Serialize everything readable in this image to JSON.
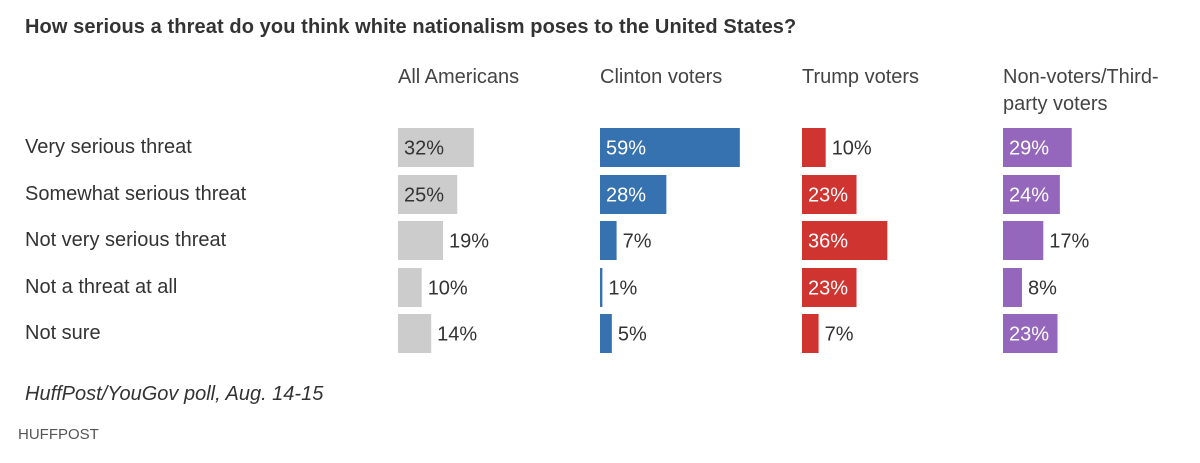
{
  "chart_data": {
    "type": "bar",
    "title": "How serious a threat do you think white nationalism poses to the United States?",
    "categories": [
      "Very serious threat",
      "Somewhat serious threat",
      "Not very serious threat",
      "Not a threat at all",
      "Not sure"
    ],
    "series": [
      {
        "name": "All Americans",
        "values": [
          32,
          25,
          19,
          10,
          14
        ],
        "color": "#cccccc"
      },
      {
        "name": "Clinton voters",
        "values": [
          59,
          28,
          7,
          1,
          5
        ],
        "color": "#3672b0"
      },
      {
        "name": "Trump voters",
        "values": [
          10,
          23,
          36,
          23,
          7
        ],
        "color": "#cf3430"
      },
      {
        "name": "Non-voters/Third-party voters",
        "values": [
          29,
          24,
          17,
          8,
          23
        ],
        "color": "#9467bd"
      }
    ],
    "value_suffix": "%",
    "source": "HuffPost/YouGov poll, Aug. 14-15",
    "brand": "HUFFPOST"
  }
}
